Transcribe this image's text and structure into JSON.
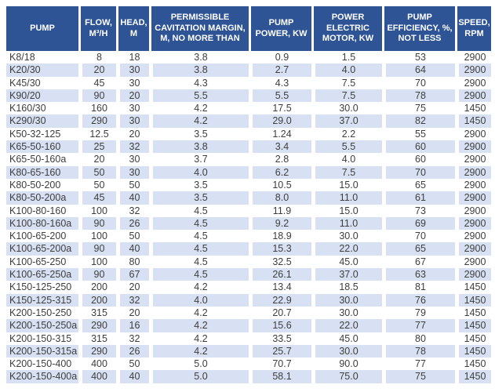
{
  "table": {
    "title": "pump-specifications-table",
    "columns": [
      {
        "key": "pump",
        "label": "PUMP"
      },
      {
        "key": "flow",
        "label": "FLOW, M³/H"
      },
      {
        "key": "head",
        "label": "HEAD, M"
      },
      {
        "key": "cavitation",
        "label": "PERMISSIBLE CAVITATION MARGIN, M, NO MORE THAN"
      },
      {
        "key": "pump_power",
        "label": "PUMP POWER, KW"
      },
      {
        "key": "motor_power",
        "label": "POWER ELECTRIC MOTOR, KW"
      },
      {
        "key": "efficiency",
        "label": "PUMP EFFICIENCY, %, NOT LESS"
      },
      {
        "key": "speed",
        "label": "SPEED, RPM"
      }
    ],
    "rows": [
      [
        "K8/18",
        "8",
        "18",
        "3.8",
        "0.9",
        "1.5",
        "53",
        "2900"
      ],
      [
        "K20/30",
        "20",
        "30",
        "3.8",
        "2.7",
        "4.0",
        "64",
        "2900"
      ],
      [
        "K45/30",
        "45",
        "30",
        "4.3",
        "4.3",
        "7.5",
        "70",
        "2900"
      ],
      [
        "K90/20",
        "90",
        "20",
        "5.5",
        "5.5",
        "7.5",
        "78",
        "2900"
      ],
      [
        "K160/30",
        "160",
        "30",
        "4.2",
        "17.5",
        "30.0",
        "75",
        "1450"
      ],
      [
        "K290/30",
        "290",
        "30",
        "4.2",
        "29.0",
        "37.0",
        "82",
        "1450"
      ],
      [
        "K50-32-125",
        "12.5",
        "20",
        "3.5",
        "1.24",
        "2.2",
        "55",
        "2900"
      ],
      [
        "K65-50-160",
        "25",
        "32",
        "3.8",
        "3.4",
        "5.5",
        "60",
        "2900"
      ],
      [
        "K65-50-160a",
        "20",
        "30",
        "3.7",
        "2.8",
        "4.0",
        "60",
        "2900"
      ],
      [
        "K80-65-160",
        "50",
        "30",
        "4.0",
        "6.2",
        "7.5",
        "70",
        "2900"
      ],
      [
        "K80-50-200",
        "50",
        "50",
        "3.5",
        "10.5",
        "15.0",
        "65",
        "2900"
      ],
      [
        "K80-50-200a",
        "45",
        "40",
        "3.5",
        "8.0",
        "11.0",
        "61",
        "2900"
      ],
      [
        "K100-80-160",
        "100",
        "32",
        "4.5",
        "11.9",
        "15.0",
        "73",
        "2900"
      ],
      [
        "K100-80-160a",
        "90",
        "26",
        "4.5",
        "9.2",
        "11.0",
        "69",
        "2900"
      ],
      [
        "K100-65-200",
        "100",
        "50",
        "4.5",
        "18.9",
        "30.0",
        "70",
        "2900"
      ],
      [
        "K100-65-200a",
        "90",
        "40",
        "4.5",
        "15.3",
        "22.0",
        "65",
        "2900"
      ],
      [
        "K100-65-250",
        "100",
        "80",
        "4.5",
        "32.5",
        "45.0",
        "67",
        "2900"
      ],
      [
        "K100-65-250a",
        "90",
        "67",
        "4.5",
        "26.1",
        "37.0",
        "63",
        "2900"
      ],
      [
        "K150-125-250",
        "200",
        "20",
        "4.2",
        "13.4",
        "18.5",
        "81",
        "1450"
      ],
      [
        "K150-125-315",
        "200",
        "32",
        "4.0",
        "22.9",
        "30.0",
        "76",
        "1450"
      ],
      [
        "K200-150-250",
        "315",
        "20",
        "4.2",
        "20.7",
        "30.0",
        "79",
        "1450"
      ],
      [
        "K200-150-250a",
        "290",
        "16",
        "4.2",
        "15.6",
        "22.0",
        "77",
        "1450"
      ],
      [
        "K200-150-315",
        "315",
        "32",
        "4.2",
        "33.5",
        "45.0",
        "80",
        "1450"
      ],
      [
        "K200-150-315a",
        "290",
        "26",
        "4.2",
        "25.7",
        "30.0",
        "78",
        "1450"
      ],
      [
        "K200-150-400",
        "400",
        "50",
        "5.0",
        "70.7",
        "90.0",
        "77",
        "1450"
      ],
      [
        "K200-150-400a",
        "400",
        "40",
        "5.0",
        "58.1",
        "75.0",
        "75",
        "1450"
      ]
    ]
  },
  "colors": {
    "header_bg": "#2e5496",
    "header_text": "#ffffff",
    "band_bg": "#d8e1f3",
    "row_bg": "#ffffff",
    "cell_text": "#3e3e3e"
  }
}
